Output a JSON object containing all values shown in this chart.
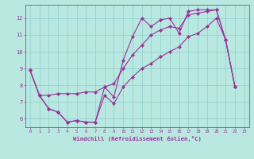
{
  "xlabel": "Windchill (Refroidissement éolien,°C)",
  "background_color": "#b8e8e0",
  "grid_color": "#8ecece",
  "line_color": "#993399",
  "xlim": [
    -0.5,
    23.5
  ],
  "ylim": [
    5.5,
    12.8
  ],
  "xticks": [
    0,
    1,
    2,
    3,
    4,
    5,
    6,
    7,
    8,
    9,
    10,
    11,
    12,
    13,
    14,
    15,
    16,
    17,
    18,
    19,
    20,
    21,
    22,
    23
  ],
  "yticks": [
    6,
    7,
    8,
    9,
    10,
    11,
    12
  ],
  "curve_main_x": [
    0,
    1,
    2,
    3,
    4,
    5,
    6,
    7,
    8,
    9,
    10,
    11,
    12,
    13,
    14,
    15,
    16,
    17,
    18,
    19,
    20,
    21,
    22
  ],
  "curve_main_y": [
    8.9,
    7.4,
    6.6,
    6.4,
    5.8,
    5.9,
    5.8,
    5.8,
    7.9,
    7.3,
    9.5,
    10.9,
    12.0,
    11.5,
    11.9,
    12.0,
    11.1,
    12.4,
    12.5,
    12.5,
    12.5,
    10.7,
    7.9
  ],
  "curve_upper_x": [
    0,
    1,
    2,
    3,
    4,
    5,
    6,
    7,
    8,
    9,
    10,
    11,
    12,
    13,
    14,
    15,
    16,
    17,
    18,
    19,
    20,
    21,
    22
  ],
  "curve_upper_y": [
    8.9,
    7.4,
    7.4,
    7.5,
    7.5,
    7.5,
    7.6,
    7.6,
    7.9,
    8.1,
    9.0,
    9.8,
    10.4,
    11.0,
    11.3,
    11.5,
    11.4,
    12.2,
    12.3,
    12.4,
    12.5,
    10.7,
    7.9
  ],
  "curve_lower_x": [
    0,
    1,
    2,
    3,
    4,
    5,
    6,
    7,
    8,
    9,
    10,
    11,
    12,
    13,
    14,
    15,
    16,
    17,
    18,
    19,
    20,
    21,
    22
  ],
  "curve_lower_y": [
    8.9,
    7.4,
    6.6,
    6.4,
    5.8,
    5.9,
    5.8,
    5.8,
    7.4,
    6.9,
    7.9,
    8.5,
    9.0,
    9.3,
    9.7,
    10.0,
    10.3,
    10.9,
    11.1,
    11.5,
    12.0,
    10.7,
    7.9
  ]
}
